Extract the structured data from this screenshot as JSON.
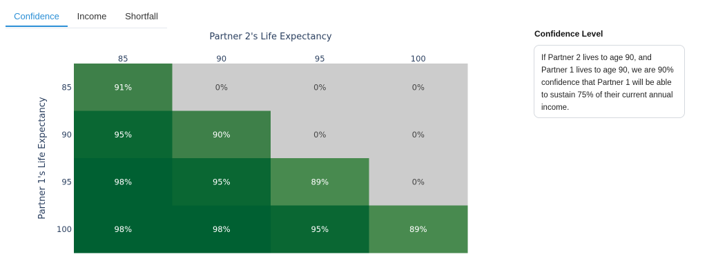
{
  "tabs": [
    {
      "label": "Confidence",
      "active": true
    },
    {
      "label": "Income",
      "active": false
    },
    {
      "label": "Shortfall",
      "active": false
    }
  ],
  "colors": {
    "accent": "#2b8fd6",
    "zero_cell": "#cccccc",
    "green_scale": [
      "#488a4f",
      "#3e8049",
      "#1f6f3e",
      "#0a6733",
      "#006032"
    ]
  },
  "chart_data": {
    "type": "heatmap",
    "title": "Partner 2's Life Expectancy",
    "xlabel": "",
    "ylabel": "Partner 1's Life Expectancy",
    "x": [
      "85",
      "90",
      "95",
      "100"
    ],
    "y": [
      "85",
      "90",
      "95",
      "100"
    ],
    "z": [
      [
        91,
        0,
        0,
        0
      ],
      [
        95,
        90,
        0,
        0
      ],
      [
        98,
        95,
        89,
        0
      ],
      [
        98,
        98,
        95,
        89
      ]
    ],
    "cell_labels": [
      [
        "91%",
        "0%",
        "0%",
        "0%"
      ],
      [
        "95%",
        "90%",
        "0%",
        "0%"
      ],
      [
        "98%",
        "95%",
        "89%",
        "0%"
      ],
      [
        "98%",
        "98%",
        "95%",
        "89%"
      ]
    ],
    "x_axis_position": "top"
  },
  "side_panel": {
    "title": "Confidence Level",
    "text": "If Partner 2 lives to age 90, and Partner 1 lives to age 90, we are 90% confidence that Partner 1 will be able to sustain 75% of their current annual income."
  }
}
